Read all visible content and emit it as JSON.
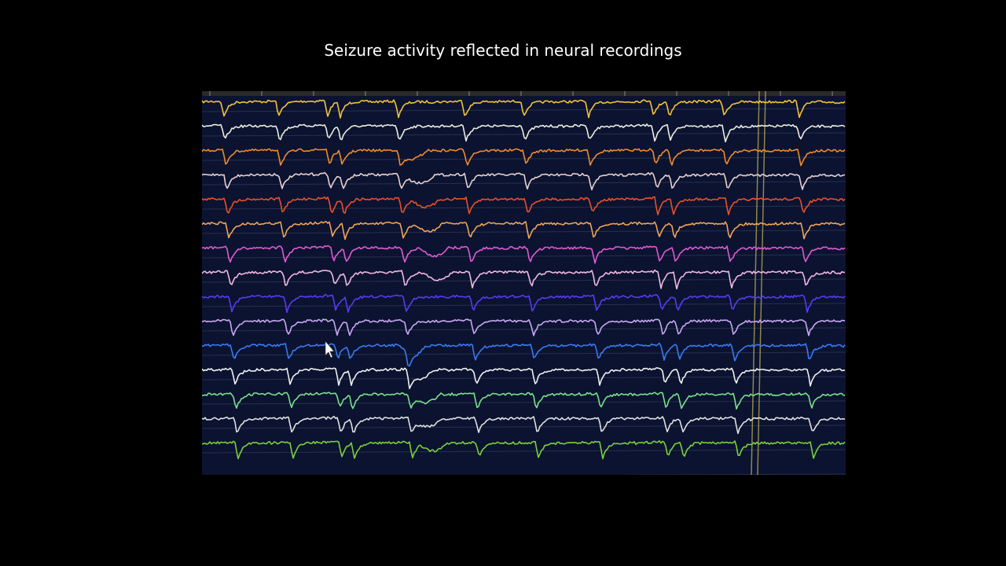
{
  "slide": {
    "title": "Seizure activity reflected in neural recordings",
    "background_color": "#000000"
  },
  "recording": {
    "background_color": "#0b1330",
    "grid_color": "#26304d",
    "marker_color": "#c9b85a",
    "cursor_icon": "mouse-pointer-icon",
    "channel_colors": [
      "#f2c23a",
      "#ecebe0",
      "#f08a2c",
      "#e8cfd0",
      "#e8502a",
      "#f0a45a",
      "#e05ad0",
      "#f0b8e0",
      "#5a3af0",
      "#c8a8f0",
      "#3a7af0",
      "#f0f0f0",
      "#7ae08a",
      "#e0e0e0",
      "#7ad03a"
    ]
  }
}
